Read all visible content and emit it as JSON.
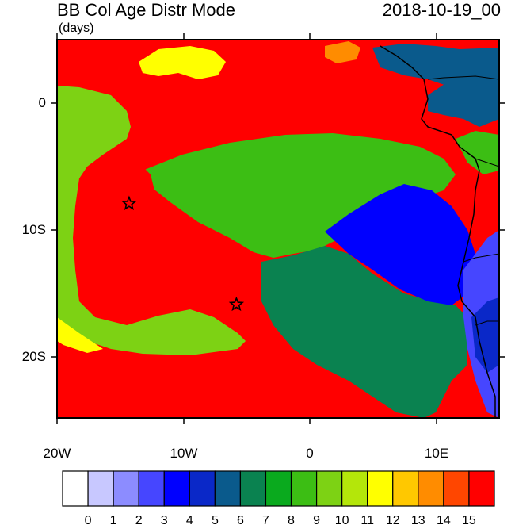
{
  "header": {
    "title": "BB Col Age Distr Mode",
    "units": "(days)",
    "datetime": "2018-10-19_00"
  },
  "axes": {
    "y_ticks": [
      "0",
      "10S",
      "20S"
    ],
    "x_ticks": [
      "20W",
      "10W",
      "0",
      "10E"
    ]
  },
  "map": {
    "lon_range": [
      -20,
      15
    ],
    "lat_range": [
      -25,
      5
    ],
    "markers": [
      {
        "name": "star-1",
        "lon": -14.3,
        "lat": -8.0
      },
      {
        "name": "star-2",
        "lon": -5.8,
        "lat": -16.0
      }
    ]
  },
  "colorbar": {
    "labels": [
      "0",
      "1",
      "2",
      "3",
      "4",
      "5",
      "6",
      "7",
      "8",
      "9",
      "10",
      "11",
      "12",
      "13",
      "14",
      "15"
    ],
    "colors": [
      "#ffffff",
      "#c8c8ff",
      "#8c8cff",
      "#4646ff",
      "#0000ff",
      "#0a28c8",
      "#0a5a8c",
      "#0a8250",
      "#0aaa1e",
      "#3cbe14",
      "#7dd214",
      "#b4e60a",
      "#ffff00",
      "#ffc800",
      "#ff8c00",
      "#ff4600",
      "#ff0000"
    ]
  }
}
